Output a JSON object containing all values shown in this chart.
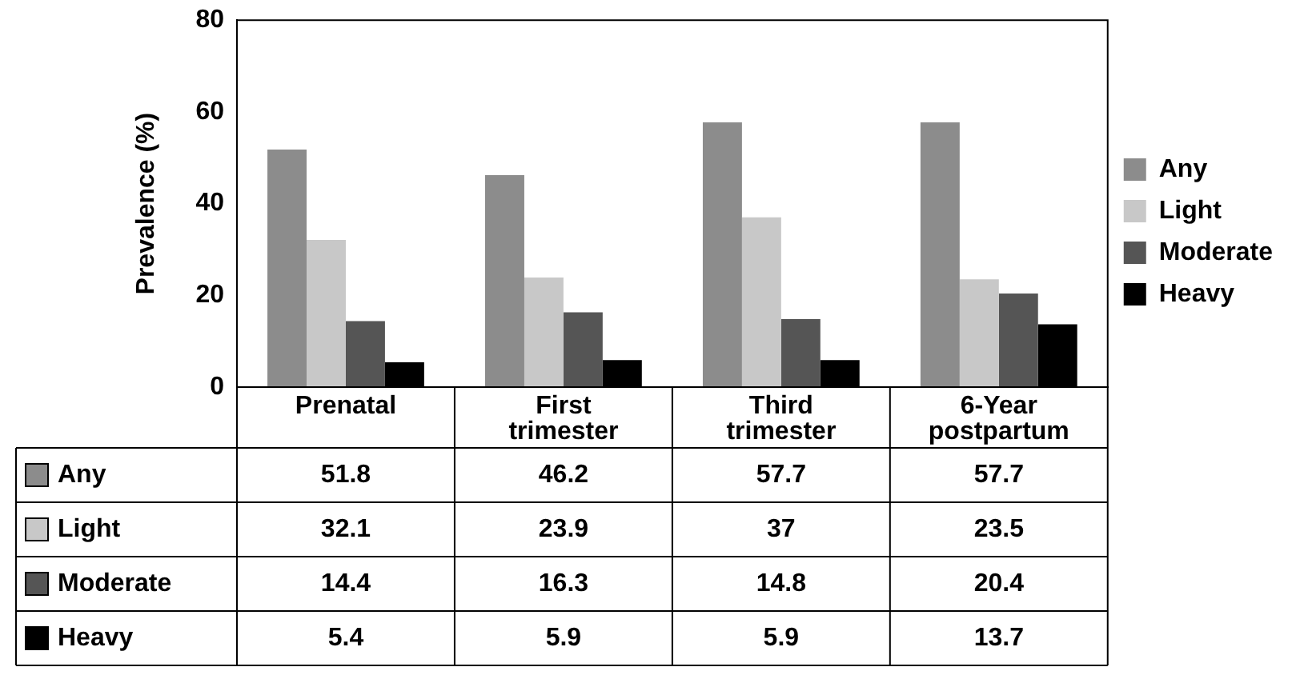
{
  "chart_data": {
    "type": "bar",
    "ylabel": "Prevalence (%)",
    "categories": [
      "Prenatal",
      "First trimester",
      "Third trimester",
      "6-Year postpartum"
    ],
    "series": [
      {
        "name": "Any",
        "color": "#8c8c8c",
        "values": [
          51.8,
          46.2,
          57.7,
          57.7
        ]
      },
      {
        "name": "Light",
        "color": "#c8c8c8",
        "values": [
          32.1,
          23.9,
          37,
          23.5
        ]
      },
      {
        "name": "Moderate",
        "color": "#555555",
        "values": [
          14.4,
          16.3,
          14.8,
          20.4
        ]
      },
      {
        "name": "Heavy",
        "color": "#000000",
        "values": [
          5.4,
          5.9,
          5.9,
          13.7
        ]
      }
    ],
    "ylim": [
      0,
      80
    ],
    "yticks": [
      0,
      20,
      40,
      60,
      80
    ],
    "grid": false,
    "legend": "right",
    "data_labels": true
  }
}
